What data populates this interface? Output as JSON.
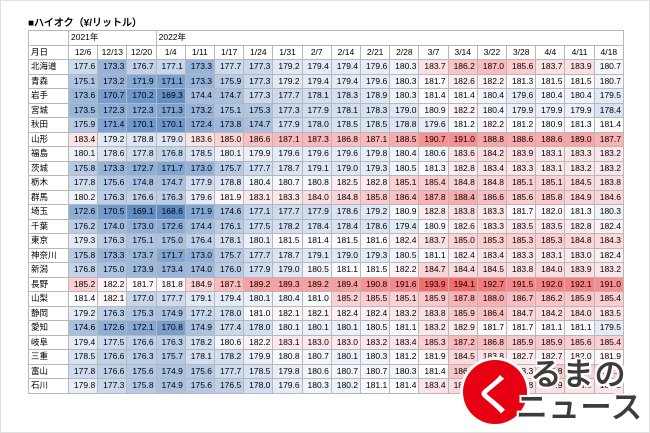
{
  "chart_data": {
    "type": "table",
    "title": "■ハイオク（¥/リットル）",
    "unit": "¥/リットル",
    "row_header": "月日",
    "year_groups": [
      {
        "label": "2021年",
        "span": 3
      },
      {
        "label": "2022年",
        "span": 16
      }
    ],
    "columns": [
      "12/6",
      "12/13",
      "12/20",
      "1/4",
      "1/11",
      "1/17",
      "1/24",
      "1/31",
      "2/7",
      "2/14",
      "2/21",
      "2/28",
      "3/7",
      "3/14",
      "3/22",
      "3/28",
      "4/4",
      "4/11",
      "4/18"
    ],
    "rows": [
      {
        "name": "北海道",
        "values": [
          177.6,
          173.3,
          176.7,
          177.1,
          173.3,
          177.7,
          177.3,
          179.2,
          179.4,
          179.4,
          179.6,
          180.3,
          183.7,
          186.2,
          187.0,
          185.6,
          183.7,
          183.9,
          180.7
        ]
      },
      {
        "name": "青森",
        "values": [
          175.1,
          173.2,
          171.9,
          171.1,
          173.3,
          175.9,
          177.3,
          179.2,
          179.4,
          179.4,
          179.6,
          180.3,
          181.7,
          182.6,
          182.2,
          181.3,
          181.5,
          181.5,
          180.7
        ]
      },
      {
        "name": "岩手",
        "values": [
          173.6,
          170.7,
          170.2,
          169.3,
          174.4,
          174.7,
          177.3,
          177.7,
          178.1,
          178.3,
          178.9,
          180.3,
          181.4,
          181.4,
          180.4,
          179.6,
          180.4,
          180.4,
          179.5
        ]
      },
      {
        "name": "宮城",
        "values": [
          173.5,
          172.3,
          172.3,
          171.3,
          173.2,
          175.1,
          175.3,
          177.3,
          177.9,
          178.1,
          178.3,
          179.0,
          180.9,
          182.2,
          180.4,
          179.9,
          179.9,
          179.9,
          178.4
        ]
      },
      {
        "name": "秋田",
        "values": [
          175.9,
          171.4,
          170.1,
          170.1,
          172.4,
          173.8,
          174.7,
          177.9,
          178.0,
          178.5,
          178.5,
          178.8,
          179.6,
          181.2,
          182.2,
          181.2,
          180.9,
          181.3,
          181.4
        ]
      },
      {
        "name": "山形",
        "values": [
          183.4,
          179.2,
          178.8,
          179.0,
          183.6,
          185.0,
          186.6,
          187.1,
          187.3,
          186.8,
          187.1,
          188.5,
          190.7,
          191.0,
          188.8,
          188.6,
          188.6,
          189.0,
          187.7
        ]
      },
      {
        "name": "福島",
        "values": [
          180.1,
          178.6,
          177.8,
          176.8,
          178.5,
          180.1,
          179.9,
          179.6,
          179.6,
          179.6,
          179.8,
          180.4,
          180.6,
          183.6,
          184.2,
          183.9,
          183.1,
          183.3,
          183.2
        ]
      },
      {
        "name": "茨城",
        "values": [
          175.8,
          173.3,
          172.7,
          171.7,
          173.0,
          175.7,
          177.7,
          178.7,
          179.1,
          179.0,
          179.3,
          180.5,
          181.3,
          182.8,
          183.4,
          183.3,
          183.1,
          183.2,
          183.2
        ]
      },
      {
        "name": "栃木",
        "values": [
          177.8,
          175.6,
          174.8,
          174.7,
          177.9,
          178.8,
          180.4,
          180.7,
          180.8,
          182.5,
          182.8,
          185.1,
          185.4,
          184.8,
          184.8,
          185.1,
          185.1,
          184.5,
          183.8
        ]
      },
      {
        "name": "群馬",
        "values": [
          180.2,
          176.3,
          176.6,
          176.3,
          179.6,
          181.9,
          183.1,
          183.3,
          184.0,
          184.8,
          185.8,
          186.4,
          187.8,
          188.4,
          186.6,
          185.6,
          185.8,
          184.9,
          184.6
        ]
      },
      {
        "name": "埼玉",
        "values": [
          172.6,
          170.5,
          169.1,
          168.6,
          171.9,
          174.6,
          177.1,
          177.7,
          177.9,
          178.6,
          179.2,
          180.9,
          182.8,
          183.8,
          183.3,
          181.7,
          182.0,
          181.3,
          180.3
        ]
      },
      {
        "name": "千葉",
        "values": [
          176.2,
          174.0,
          173.0,
          172.6,
          174.4,
          176.1,
          177.5,
          178.2,
          178.4,
          178.4,
          178.6,
          179.4,
          180.9,
          182.6,
          183.3,
          183.5,
          183.5,
          182.8,
          182.4
        ]
      },
      {
        "name": "東京",
        "values": [
          179.3,
          176.3,
          175.1,
          175.0,
          176.4,
          178.1,
          180.1,
          181.5,
          181.4,
          181.5,
          181.6,
          182.4,
          183.7,
          185.0,
          185.3,
          185.3,
          185.3,
          184.8,
          184.3
        ]
      },
      {
        "name": "神奈川",
        "values": [
          175.8,
          173.3,
          173.7,
          171.7,
          173.0,
          175.7,
          177.7,
          178.7,
          179.1,
          179.0,
          179.3,
          180.5,
          181.1,
          182.4,
          183.4,
          183.3,
          183.1,
          183.0,
          182.4
        ]
      },
      {
        "name": "新潟",
        "values": [
          176.8,
          175.0,
          173.9,
          173.4,
          174.0,
          176.0,
          177.9,
          179.0,
          180.5,
          181.1,
          181.5,
          182.2,
          184.7,
          184.4,
          184.5,
          183.8,
          184.0,
          183.9,
          183.2
        ]
      },
      {
        "name": "長野",
        "values": [
          185.2,
          182.2,
          181.7,
          181.8,
          184.9,
          187.1,
          189.2,
          189.3,
          189.2,
          189.4,
          190.8,
          191.6,
          193.9,
          194.1,
          192.7,
          191.5,
          192.0,
          192.1,
          191.0
        ]
      },
      {
        "name": "山梨",
        "values": [
          181.4,
          182.1,
          177.0,
          177.7,
          179.1,
          179.4,
          180.1,
          180.4,
          181.0,
          185.2,
          185.5,
          185.1,
          185.9,
          187.8,
          188.0,
          186.7,
          186.2,
          185.9,
          185.4
        ]
      },
      {
        "name": "静岡",
        "values": [
          179.2,
          176.3,
          175.3,
          174.9,
          177.2,
          178.0,
          181.0,
          182.1,
          182.1,
          182.4,
          182.4,
          183.2,
          183.8,
          185.9,
          186.4,
          184.7,
          184.2,
          184.0,
          183.5
        ]
      },
      {
        "name": "愛知",
        "values": [
          174.6,
          172.6,
          172.1,
          170.8,
          174.9,
          177.4,
          178.0,
          180.1,
          180.1,
          180.1,
          180.5,
          181.1,
          183.2,
          182.9,
          181.7,
          181.7,
          181.1,
          181.1,
          179.5
        ]
      },
      {
        "name": "岐阜",
        "values": [
          179.4,
          177.5,
          176.6,
          176.3,
          178.2,
          180.6,
          182.2,
          183.1,
          183.0,
          183.0,
          183.2,
          183.4,
          185.3,
          187.2,
          186.8,
          185.9,
          185.9,
          185.6,
          185.4
        ]
      },
      {
        "name": "三重",
        "values": [
          178.5,
          176.6,
          176.3,
          175.7,
          178.1,
          178.2,
          179.9,
          180.8,
          180.7,
          180.1,
          180.3,
          181.2,
          181.9,
          184.5,
          183.8,
          182.7,
          182.7,
          182.0,
          181.9
        ]
      },
      {
        "name": "富山",
        "values": [
          177.8,
          176.6,
          175.6,
          174.9,
          175.6,
          177.7,
          178.5,
          179.8,
          180.6,
          180.7,
          180.7,
          180.3,
          181.4,
          186.0,
          186.1,
          183.3,
          185.8,
          185.4,
          185.2
        ]
      },
      {
        "name": "石川",
        "values": [
          179.8,
          177.3,
          175.8,
          174.9,
          175.6,
          176.5,
          178.0,
          179.6,
          180.3,
          180.2,
          181.1,
          181.4,
          183.4,
          184.4,
          183.9,
          183.8,
          183.9,
          183.5,
          183.2
        ]
      }
    ],
    "color_scale": {
      "low": "#5a8ac6",
      "mid": "#fcfcff",
      "high": "#f8696b"
    }
  },
  "watermark": {
    "circle_char": "く",
    "line1": "るまの",
    "line2": "ニュース",
    "circle_color": "#e60012"
  }
}
